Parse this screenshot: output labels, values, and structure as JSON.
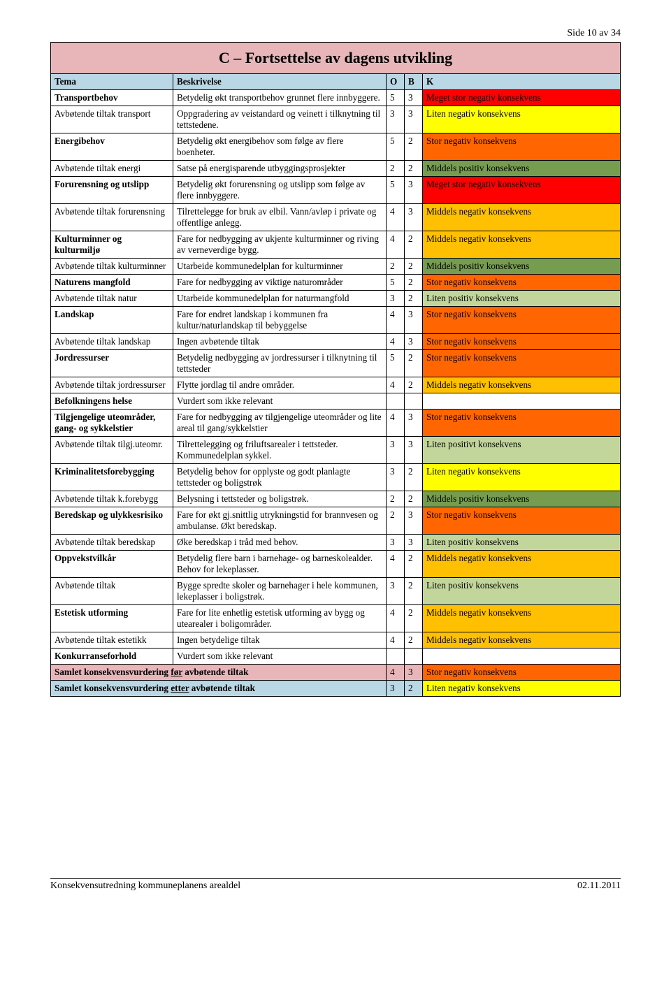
{
  "page_number_label": "Side 10 av 34",
  "title": "C – Fortsettelse av dagens utvikling",
  "colors": {
    "title_bg": "#e8b6b9",
    "header_bg": "#b9d7e4",
    "summary_before_bg": "#e8b6b9",
    "summary_after_bg": "#b9d7e4",
    "meget_stor_neg": "#fe0000",
    "stor_neg": "#ff6500",
    "middels_neg": "#ffc001",
    "liten_neg": "#ffff00",
    "liten_pos": "#c2d69b",
    "middels_pos": "#769c4f",
    "none": "#ffffff"
  },
  "header": {
    "tema": "Tema",
    "besk": "Beskrivelse",
    "o": "O",
    "b": "B",
    "k": "K"
  },
  "rows": [
    {
      "tema": "Transportbehov",
      "besk": "Betydelig økt transportbehov grunnet flere innbyggere.",
      "o": "5",
      "b": "3",
      "k": "Meget stor negativ konsekvens",
      "kc": "meget_stor_neg",
      "bold": true
    },
    {
      "tema": "Avbøtende tiltak transport",
      "besk": "Oppgradering av veistandard og veinett i tilknytning til tettstedene.",
      "o": "3",
      "b": "3",
      "k": "Liten negativ konsekvens",
      "kc": "liten_neg"
    },
    {
      "tema": "Energibehov",
      "besk": "Betydelig økt energibehov som følge av flere boenheter.",
      "o": "5",
      "b": "2",
      "k": "Stor negativ konsekvens",
      "kc": "stor_neg",
      "bold": true,
      "sep": true
    },
    {
      "tema": "Avbøtende tiltak energi",
      "besk": "Satse på energisparende utbyggingsprosjekter",
      "o": "2",
      "b": "2",
      "k": "Middels positiv konsekvens",
      "kc": "middels_pos"
    },
    {
      "tema": "Forurensning og utslipp",
      "besk": "Betydelig økt forurensning og utslipp som følge av flere innbyggere.",
      "o": "5",
      "b": "3",
      "k": "Meget stor negativ konsekvens",
      "kc": "meget_stor_neg",
      "bold": true,
      "sep": true
    },
    {
      "tema": "Avbøtende tiltak forurensning",
      "besk": "Tilrettelegge for bruk av elbil. Vann/avløp i private og offentlige anlegg.",
      "o": "4",
      "b": "3",
      "k": "Middels negativ konsekvens",
      "kc": "middels_neg"
    },
    {
      "tema": "Kulturminner og kulturmiljø",
      "besk": "Fare for nedbygging av ukjente kulturminner og riving av verneverdige bygg.",
      "o": "4",
      "b": "2",
      "k": "Middels negativ konsekvens",
      "kc": "middels_neg",
      "bold": true,
      "sep": true
    },
    {
      "tema": "Avbøtende tiltak kulturminner",
      "besk": "Utarbeide kommunedelplan for kulturminner",
      "o": "2",
      "b": "2",
      "k": "Middels positiv konsekvens",
      "kc": "middels_pos"
    },
    {
      "tema": "Naturens mangfold",
      "besk": "Fare for nedbygging av viktige naturområder",
      "o": "5",
      "b": "2",
      "k": "Stor negativ konsekvens",
      "kc": "stor_neg",
      "bold": true,
      "sep": true
    },
    {
      "tema": "Avbøtende tiltak natur",
      "besk": "Utarbeide kommunedelplan for naturmangfold",
      "o": "3",
      "b": "2",
      "k": "Liten positiv konsekvens",
      "kc": "liten_pos"
    },
    {
      "tema": "Landskap",
      "besk": "Fare for endret landskap i kommunen fra kultur/naturlandskap til bebyggelse",
      "o": "4",
      "b": "3",
      "k": "Stor negativ konsekvens",
      "kc": "stor_neg",
      "bold": true,
      "sep": true
    },
    {
      "tema": "Avbøtende tiltak landskap",
      "besk": "Ingen avbøtende tiltak",
      "o": "4",
      "b": "3",
      "k": "Stor negativ konsekvens",
      "kc": "stor_neg"
    },
    {
      "tema": "Jordressurser",
      "besk": "Betydelig nedbygging av jordressurser i tilknytning til tettsteder",
      "o": "5",
      "b": "2",
      "k": "Stor negativ konsekvens",
      "kc": "stor_neg",
      "bold": true,
      "sep": true
    },
    {
      "tema": "Avbøtende tiltak jordressurser",
      "besk": "Flytte jordlag til andre områder.",
      "o": "4",
      "b": "2",
      "k": "Middels negativ konsekvens",
      "kc": "middels_neg"
    },
    {
      "tema": "Befolkningens helse",
      "besk": "Vurdert som ikke relevant",
      "o": "",
      "b": "",
      "k": "",
      "kc": "none",
      "bold": true,
      "sep": true
    },
    {
      "tema": "Tilgjengelige uteområder, gang- og sykkelstier",
      "besk": "Fare for nedbygging av tilgjengelige uteområder og lite areal til gang/sykkelstier",
      "o": "4",
      "b": "3",
      "k": "Stor negativ konsekvens",
      "kc": "stor_neg",
      "bold": true,
      "sep": true
    },
    {
      "tema": "Avbøtende tiltak tilgj.uteomr.",
      "besk": "Tilrettelegging og friluftsarealer i tettsteder. Kommunedelplan sykkel.",
      "o": "3",
      "b": "3",
      "k": "Liten positivt konsekvens",
      "kc": "liten_pos"
    },
    {
      "tema": "Kriminalitetsforebygging",
      "besk": "Betydelig behov for opplyste og godt planlagte tettsteder og boligstrøk",
      "o": "3",
      "b": "2",
      "k": "Liten negativ konsekvens",
      "kc": "liten_neg",
      "bold": true,
      "sep": true
    },
    {
      "tema": "Avbøtende tiltak k.forebygg",
      "besk": "Belysning i tettsteder og boligstrøk.",
      "o": "2",
      "b": "2",
      "k": "Middels positiv konsekvens",
      "kc": "middels_pos"
    },
    {
      "tema": "Beredskap og ulykkesrisiko",
      "besk": "Fare for økt gj.snittlig utrykningstid for brannvesen og ambulanse. Økt beredskap.",
      "o": "2",
      "b": "3",
      "k": "Stor negativ konsekvens",
      "kc": "stor_neg",
      "bold": true,
      "sep": true
    },
    {
      "tema": "Avbøtende tiltak beredskap",
      "besk": "Øke beredskap i tråd med behov.",
      "o": "3",
      "b": "3",
      "k": "Liten positiv konsekvens",
      "kc": "liten_pos"
    },
    {
      "tema": "Oppvekstvilkår",
      "besk": "Betydelig flere barn i barnehage- og barneskolealder. Behov for lekeplasser.",
      "o": "4",
      "b": "2",
      "k": "Middels negativ konsekvens",
      "kc": "middels_neg",
      "bold": true,
      "sep": true
    },
    {
      "tema": "Avbøtende tiltak",
      "besk": "Bygge spredte skoler og barnehager i hele kommunen, lekeplasser i boligstrøk.",
      "o": "3",
      "b": "2",
      "k": "Liten positiv konsekvens",
      "kc": "liten_pos"
    },
    {
      "tema": "Estetisk utforming",
      "besk": "Fare for lite enhetlig estetisk utforming av bygg og utearealer i boligområder.",
      "o": "4",
      "b": "2",
      "k": "Middels negativ konsekvens",
      "kc": "middels_neg",
      "bold": true,
      "sep": true
    },
    {
      "tema": "Avbøtende tiltak estetikk",
      "besk": "Ingen betydelige tiltak",
      "o": "4",
      "b": "2",
      "k": "Middels negativ konsekvens",
      "kc": "middels_neg"
    },
    {
      "tema": "Konkurranseforhold",
      "besk": "Vurdert som ikke relevant",
      "o": "",
      "b": "",
      "k": "",
      "kc": "none",
      "bold": true,
      "sep": true
    }
  ],
  "summary": [
    {
      "label_html": "Samlet konsekvensvurdering <u>før</u> avbøtende tiltak",
      "o": "4",
      "b": "3",
      "k": "Stor negativ konsekvens",
      "kc": "stor_neg",
      "bg": "summary_before_bg"
    },
    {
      "label_html": "Samlet konsekvensvurdering <u>etter</u> avbøtende tiltak",
      "o": "3",
      "b": "2",
      "k": "Liten negativ konsekvens",
      "kc": "liten_neg",
      "bg": "summary_after_bg"
    }
  ],
  "footer": {
    "left": "Konsekvensutredning kommuneplanens arealdel",
    "right": "02.11.2011"
  }
}
